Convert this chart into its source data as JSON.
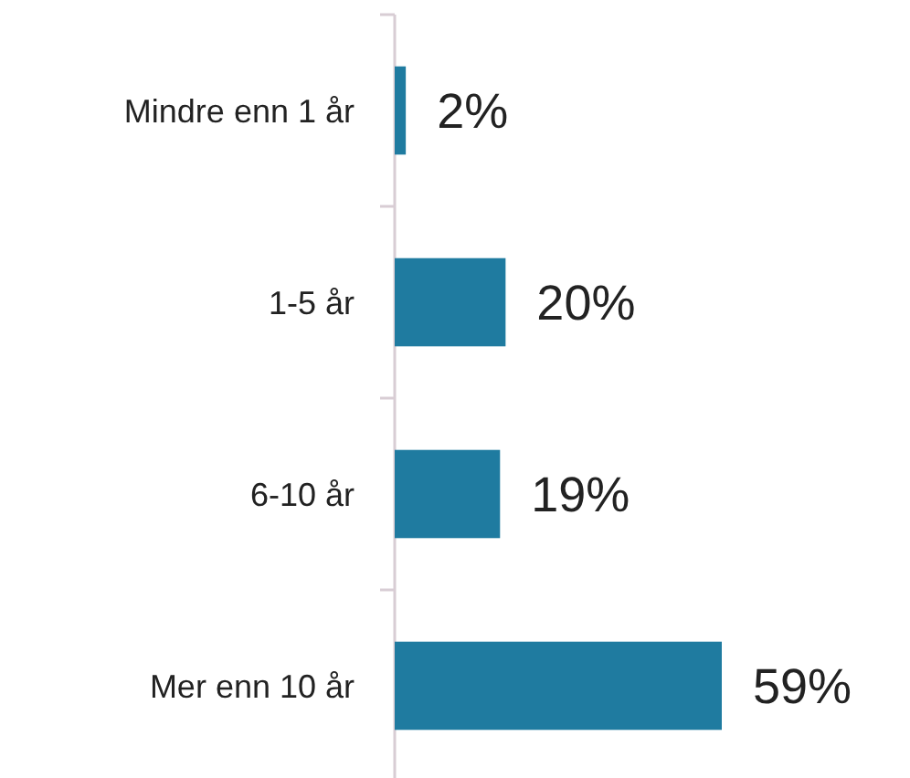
{
  "chart_data": {
    "type": "bar",
    "orientation": "horizontal",
    "categories": [
      "Mindre enn 1 år",
      "1-5 år",
      "6-10 år",
      "Mer enn 10 år"
    ],
    "values": [
      2,
      20,
      19,
      59
    ],
    "value_labels": [
      "2%",
      "20%",
      "19%",
      "59%"
    ],
    "color": "#1f7ba0"
  }
}
